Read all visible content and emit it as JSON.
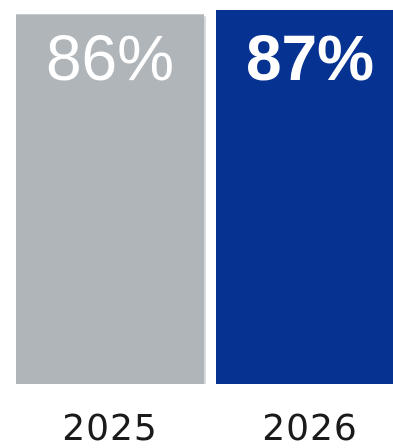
{
  "chart_data": {
    "type": "bar",
    "categories": [
      "2025",
      "2026"
    ],
    "values": [
      86,
      87
    ],
    "value_labels": [
      "86%",
      "87%"
    ],
    "colors": [
      "#b0b5ba",
      "#063291"
    ],
    "emphasized": [
      false,
      true
    ],
    "title": "",
    "xlabel": "",
    "ylabel": "",
    "grid": false,
    "legend": "none"
  }
}
